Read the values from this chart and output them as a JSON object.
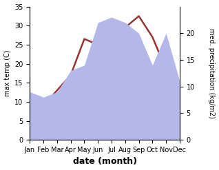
{
  "months": [
    "Jan",
    "Feb",
    "Mar",
    "Apr",
    "May",
    "Jun",
    "Jul",
    "Aug",
    "Sep",
    "Oct",
    "Nov",
    "Dec"
  ],
  "temperature": [
    7.5,
    9.0,
    13.0,
    17.0,
    26.5,
    25.0,
    31.0,
    29.5,
    32.5,
    27.0,
    18.5,
    10.5
  ],
  "precipitation": [
    9.0,
    8.0,
    9.0,
    13.0,
    14.0,
    22.0,
    23.0,
    22.0,
    20.0,
    14.0,
    20.0,
    11.0
  ],
  "temp_color": "#993333",
  "precip_fill_color": "#b3b8e8",
  "background_color": "#ffffff",
  "temp_ylabel": "max temp (C)",
  "precip_ylabel": "med. precipitation (kg/m2)",
  "xlabel": "date (month)",
  "ylim_temp": [
    0,
    35
  ],
  "ylim_precip": [
    0,
    25
  ],
  "temp_yticks": [
    0,
    5,
    10,
    15,
    20,
    25,
    30,
    35
  ],
  "precip_yticks": [
    0,
    5,
    10,
    15,
    20
  ],
  "label_fontsize": 8,
  "tick_fontsize": 7,
  "xlabel_fontsize": 9
}
